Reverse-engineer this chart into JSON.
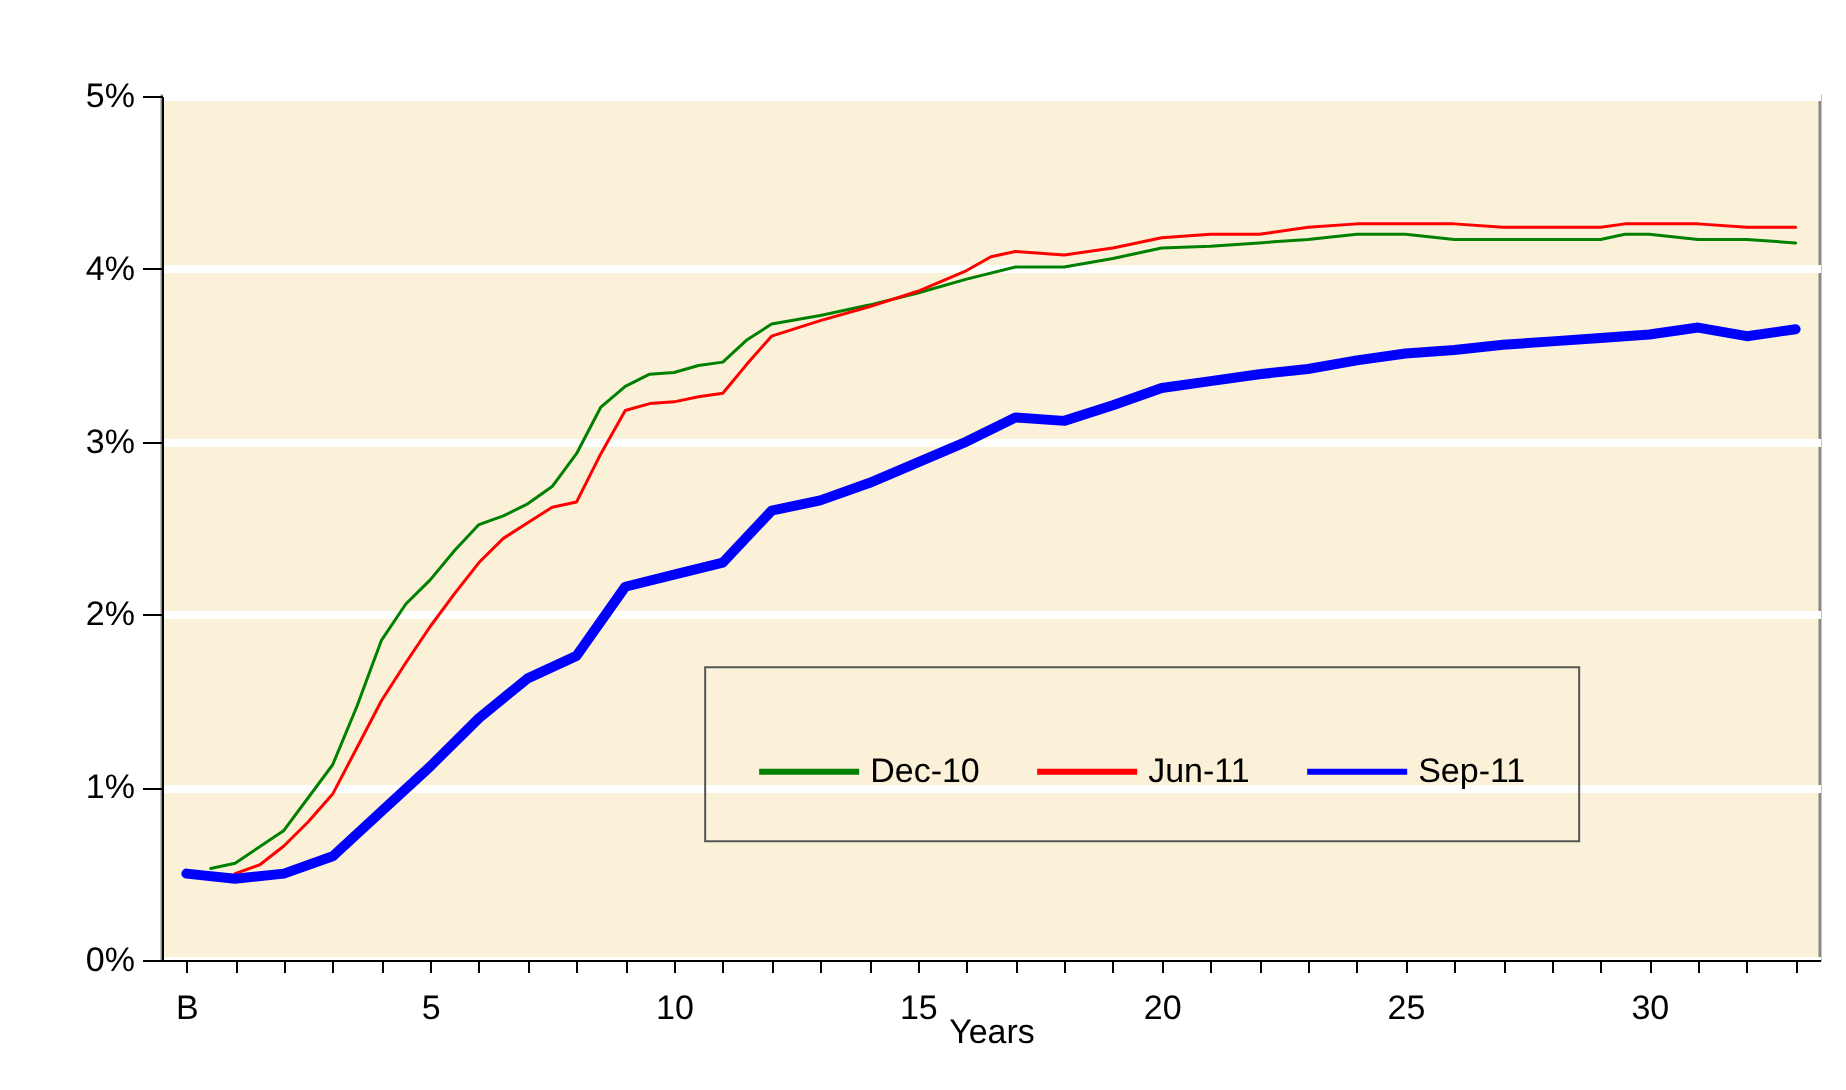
{
  "chart_data": {
    "type": "line",
    "xlabel": "Years",
    "xlim": [
      -0.5,
      33.5
    ],
    "xticks": [
      {
        "value": 0,
        "label": "B"
      },
      {
        "value": 1,
        "label": null
      },
      {
        "value": 2,
        "label": null
      },
      {
        "value": 3,
        "label": null
      },
      {
        "value": 4,
        "label": null
      },
      5,
      {
        "value": 6,
        "label": null
      },
      {
        "value": 7,
        "label": null
      },
      {
        "value": 8,
        "label": null
      },
      {
        "value": 9,
        "label": null
      },
      10,
      {
        "value": 11,
        "label": null
      },
      {
        "value": 12,
        "label": null
      },
      {
        "value": 13,
        "label": null
      },
      {
        "value": 14,
        "label": null
      },
      15,
      {
        "value": 16,
        "label": null
      },
      {
        "value": 17,
        "label": null
      },
      {
        "value": 18,
        "label": null
      },
      {
        "value": 19,
        "label": null
      },
      20,
      {
        "value": 21,
        "label": null
      },
      {
        "value": 22,
        "label": null
      },
      {
        "value": 23,
        "label": null
      },
      {
        "value": 24,
        "label": null
      },
      25,
      {
        "value": 26,
        "label": null
      },
      {
        "value": 27,
        "label": null
      },
      {
        "value": 28,
        "label": null
      },
      {
        "value": 29,
        "label": null
      },
      30,
      {
        "value": 31,
        "label": null
      },
      {
        "value": 32,
        "label": null
      },
      {
        "value": 33,
        "label": null
      }
    ],
    "ylim": [
      0,
      5
    ],
    "yticks": [
      {
        "value": 0,
        "label": "0%"
      },
      {
        "value": 1,
        "label": "1%"
      },
      {
        "value": 2,
        "label": "2%"
      },
      {
        "value": 3,
        "label": "3%"
      },
      {
        "value": 4,
        "label": "4%"
      },
      {
        "value": 5,
        "label": "5%"
      }
    ],
    "grid": "y",
    "legend": "bottom",
    "line_style": "solid",
    "series": [
      {
        "name": "Dec-10",
        "color": "#008000",
        "x": [
          0.5,
          1,
          2,
          3,
          3.5,
          4,
          4.5,
          5,
          5.5,
          6,
          6.5,
          7,
          7.5,
          8,
          8.5,
          9,
          9.5,
          10,
          10.5,
          11,
          11.5,
          12,
          13,
          14,
          15,
          16,
          17,
          18,
          19,
          20,
          21,
          22,
          23,
          24,
          25,
          26,
          27,
          28,
          29,
          29.5,
          30,
          31,
          32,
          33
        ],
        "values": [
          0.53,
          0.56,
          0.75,
          1.13,
          1.47,
          1.85,
          2.06,
          2.2,
          2.37,
          2.52,
          2.57,
          2.64,
          2.74,
          2.93,
          3.2,
          3.32,
          3.39,
          3.4,
          3.44,
          3.46,
          3.59,
          3.68,
          3.73,
          3.79,
          3.86,
          3.94,
          4.01,
          4.01,
          4.06,
          4.12,
          4.13,
          4.15,
          4.17,
          4.2,
          4.2,
          4.17,
          4.17,
          4.17,
          4.17,
          4.2,
          4.2,
          4.17,
          4.17,
          4.15
        ]
      },
      {
        "name": "Jun-11",
        "color": "#ff0000",
        "x": [
          1,
          1.5,
          2,
          2.5,
          3,
          3.5,
          4,
          4.5,
          5,
          5.5,
          6,
          6.5,
          7,
          7.5,
          8,
          8.5,
          9,
          9.5,
          10,
          10.5,
          11,
          11.5,
          12,
          13,
          14,
          15,
          16,
          16.5,
          17,
          18,
          19,
          20,
          21,
          22,
          23,
          24,
          25,
          26,
          27,
          28,
          29,
          29.5,
          30,
          31,
          32,
          33
        ],
        "values": [
          0.5,
          0.55,
          0.66,
          0.8,
          0.96,
          1.23,
          1.5,
          1.72,
          1.93,
          2.12,
          2.3,
          2.44,
          2.53,
          2.62,
          2.65,
          2.93,
          3.18,
          3.22,
          3.23,
          3.26,
          3.28,
          3.45,
          3.61,
          3.7,
          3.78,
          3.87,
          3.99,
          4.07,
          4.1,
          4.08,
          4.12,
          4.18,
          4.2,
          4.2,
          4.24,
          4.26,
          4.26,
          4.26,
          4.24,
          4.24,
          4.24,
          4.26,
          4.26,
          4.26,
          4.24,
          4.24
        ]
      },
      {
        "name": "Sep-11",
        "color": "#0000ff",
        "x": [
          0,
          1,
          2,
          3,
          4,
          5,
          6,
          7,
          8,
          9,
          10,
          11,
          12,
          13,
          14,
          15,
          16,
          17,
          18,
          19,
          20,
          21,
          22,
          23,
          24,
          25,
          26,
          27,
          28,
          29,
          30,
          31,
          32,
          33
        ],
        "values": [
          0.5,
          0.47,
          0.5,
          0.6,
          0.86,
          1.12,
          1.4,
          1.63,
          1.76,
          2.16,
          2.23,
          2.3,
          2.6,
          2.66,
          2.76,
          2.88,
          3.0,
          3.14,
          3.12,
          3.21,
          3.31,
          3.35,
          3.39,
          3.42,
          3.47,
          3.51,
          3.53,
          3.56,
          3.58,
          3.6,
          3.62,
          3.66,
          3.61,
          3.65
        ]
      }
    ]
  }
}
